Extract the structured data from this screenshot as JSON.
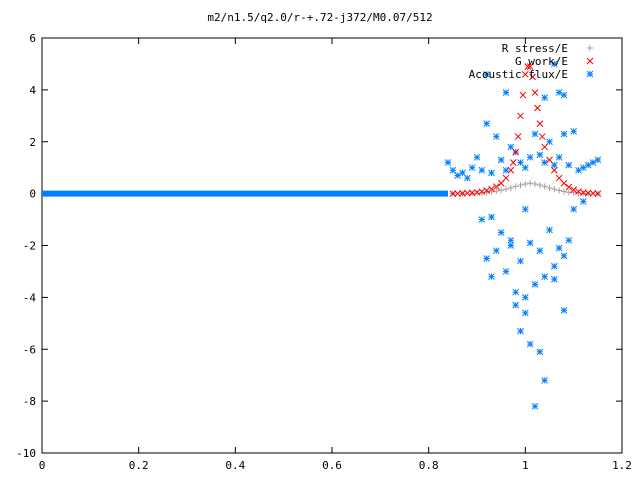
{
  "chart_data": {
    "type": "scatter",
    "title": "m2/n1.5/q2.0/r-+.72-j372/M0.07/512",
    "xlabel": "",
    "ylabel": "",
    "xlim": [
      0,
      1.2
    ],
    "ylim": [
      -10,
      6
    ],
    "xticks": [
      0,
      0.2,
      0.4,
      0.6,
      0.8,
      1,
      1.2
    ],
    "xtick_labels": [
      "0",
      "0.2",
      "0.4",
      "0.6",
      "0.8",
      "1",
      "1.2"
    ],
    "yticks": [
      -10,
      -8,
      -6,
      -4,
      -2,
      0,
      2,
      4,
      6
    ],
    "ytick_labels": [
      "-10",
      "-8",
      "-6",
      "-4",
      "-2",
      "0",
      "2",
      "4",
      "6"
    ],
    "grid": false,
    "legend_position": "top-right",
    "series": [
      {
        "name": "R stress/E",
        "marker": "plus",
        "color": "#a0a0a0",
        "points": [
          [
            0.85,
            0.0
          ],
          [
            0.87,
            0.0
          ],
          [
            0.89,
            0.01
          ],
          [
            0.9,
            0.02
          ],
          [
            0.91,
            0.03
          ],
          [
            0.92,
            0.05
          ],
          [
            0.93,
            0.07
          ],
          [
            0.94,
            0.1
          ],
          [
            0.95,
            0.13
          ],
          [
            0.96,
            0.17
          ],
          [
            0.97,
            0.22
          ],
          [
            0.98,
            0.28
          ],
          [
            0.99,
            0.33
          ],
          [
            1.0,
            0.37
          ],
          [
            1.01,
            0.4
          ],
          [
            1.02,
            0.37
          ],
          [
            1.03,
            0.33
          ],
          [
            1.04,
            0.28
          ],
          [
            1.05,
            0.22
          ],
          [
            1.06,
            0.17
          ],
          [
            1.07,
            0.12
          ],
          [
            1.08,
            0.08
          ],
          [
            1.09,
            0.05
          ],
          [
            1.1,
            0.03
          ],
          [
            1.11,
            0.02
          ],
          [
            1.12,
            0.01
          ],
          [
            1.13,
            0.0
          ],
          [
            1.15,
            0.0
          ]
        ]
      },
      {
        "name": "G work/E",
        "marker": "cross",
        "color": "#ff0000",
        "points": [
          [
            0.85,
            0.0
          ],
          [
            0.86,
            0.0
          ],
          [
            0.87,
            0.01
          ],
          [
            0.88,
            0.02
          ],
          [
            0.89,
            0.03
          ],
          [
            0.9,
            0.05
          ],
          [
            0.91,
            0.08
          ],
          [
            0.92,
            0.12
          ],
          [
            0.93,
            0.18
          ],
          [
            0.94,
            0.27
          ],
          [
            0.95,
            0.4
          ],
          [
            0.96,
            0.6
          ],
          [
            0.97,
            0.9
          ],
          [
            0.975,
            1.2
          ],
          [
            0.98,
            1.6
          ],
          [
            0.985,
            2.2
          ],
          [
            0.99,
            3.0
          ],
          [
            0.995,
            3.8
          ],
          [
            1.0,
            4.6
          ],
          [
            1.005,
            4.9
          ],
          [
            1.01,
            4.9
          ],
          [
            1.015,
            4.5
          ],
          [
            1.02,
            3.9
          ],
          [
            1.025,
            3.3
          ],
          [
            1.03,
            2.7
          ],
          [
            1.035,
            2.2
          ],
          [
            1.04,
            1.8
          ],
          [
            1.05,
            1.3
          ],
          [
            1.06,
            0.9
          ],
          [
            1.07,
            0.6
          ],
          [
            1.08,
            0.4
          ],
          [
            1.09,
            0.25
          ],
          [
            1.1,
            0.15
          ],
          [
            1.11,
            0.08
          ],
          [
            1.12,
            0.04
          ],
          [
            1.13,
            0.02
          ],
          [
            1.14,
            0.01
          ],
          [
            1.15,
            0.0
          ]
        ]
      },
      {
        "name": "Acoustic flux/E",
        "marker": "star",
        "color": "#0080ff",
        "baseline": {
          "x_from": 0,
          "x_to": 0.84,
          "y": 0
        },
        "points": [
          [
            0.84,
            1.2
          ],
          [
            0.85,
            0.9
          ],
          [
            0.86,
            0.7
          ],
          [
            0.87,
            0.8
          ],
          [
            0.88,
            0.6
          ],
          [
            0.89,
            1.0
          ],
          [
            0.9,
            1.4
          ],
          [
            0.91,
            0.9
          ],
          [
            0.92,
            2.7
          ],
          [
            0.93,
            0.8
          ],
          [
            0.94,
            2.2
          ],
          [
            0.95,
            1.3
          ],
          [
            0.96,
            0.9
          ],
          [
            0.97,
            1.8
          ],
          [
            0.98,
            1.6
          ],
          [
            0.99,
            1.2
          ],
          [
            1.0,
            1.0
          ],
          [
            1.01,
            1.4
          ],
          [
            1.02,
            2.3
          ],
          [
            1.03,
            1.5
          ],
          [
            1.04,
            1.2
          ],
          [
            1.05,
            2.0
          ],
          [
            1.06,
            1.1
          ],
          [
            1.07,
            1.4
          ],
          [
            1.08,
            2.3
          ],
          [
            1.09,
            1.1
          ],
          [
            1.1,
            2.4
          ],
          [
            1.11,
            0.9
          ],
          [
            1.12,
            1.0
          ],
          [
            1.13,
            1.1
          ],
          [
            1.14,
            1.2
          ],
          [
            1.15,
            1.3
          ],
          [
            0.92,
            4.6
          ],
          [
            0.96,
            3.9
          ],
          [
            1.06,
            5.0
          ],
          [
            1.07,
            3.9
          ],
          [
            1.08,
            3.8
          ],
          [
            1.04,
            3.7
          ],
          [
            0.91,
            -1.0
          ],
          [
            0.93,
            -0.9
          ],
          [
            0.95,
            -1.5
          ],
          [
            0.97,
            -1.8
          ],
          [
            0.99,
            -2.6
          ],
          [
            1.01,
            -1.9
          ],
          [
            1.03,
            -2.2
          ],
          [
            1.05,
            -1.4
          ],
          [
            1.07,
            -2.1
          ],
          [
            1.09,
            -1.8
          ],
          [
            0.92,
            -2.5
          ],
          [
            0.94,
            -2.2
          ],
          [
            0.96,
            -3.0
          ],
          [
            0.98,
            -3.8
          ],
          [
            1.0,
            -4.0
          ],
          [
            1.02,
            -3.5
          ],
          [
            1.04,
            -3.2
          ],
          [
            1.06,
            -2.8
          ],
          [
            1.08,
            -2.4
          ],
          [
            0.98,
            -4.3
          ],
          [
            0.99,
            -5.3
          ],
          [
            1.0,
            -4.6
          ],
          [
            1.01,
            -5.8
          ],
          [
            1.03,
            -6.1
          ],
          [
            1.04,
            -7.2
          ],
          [
            1.02,
            -8.2
          ],
          [
            0.97,
            -2.0
          ],
          [
            1.0,
            -0.6
          ],
          [
            1.1,
            -0.6
          ],
          [
            1.12,
            -0.3
          ],
          [
            0.93,
            -3.2
          ],
          [
            1.06,
            -3.3
          ],
          [
            1.08,
            -4.5
          ]
        ]
      }
    ]
  }
}
